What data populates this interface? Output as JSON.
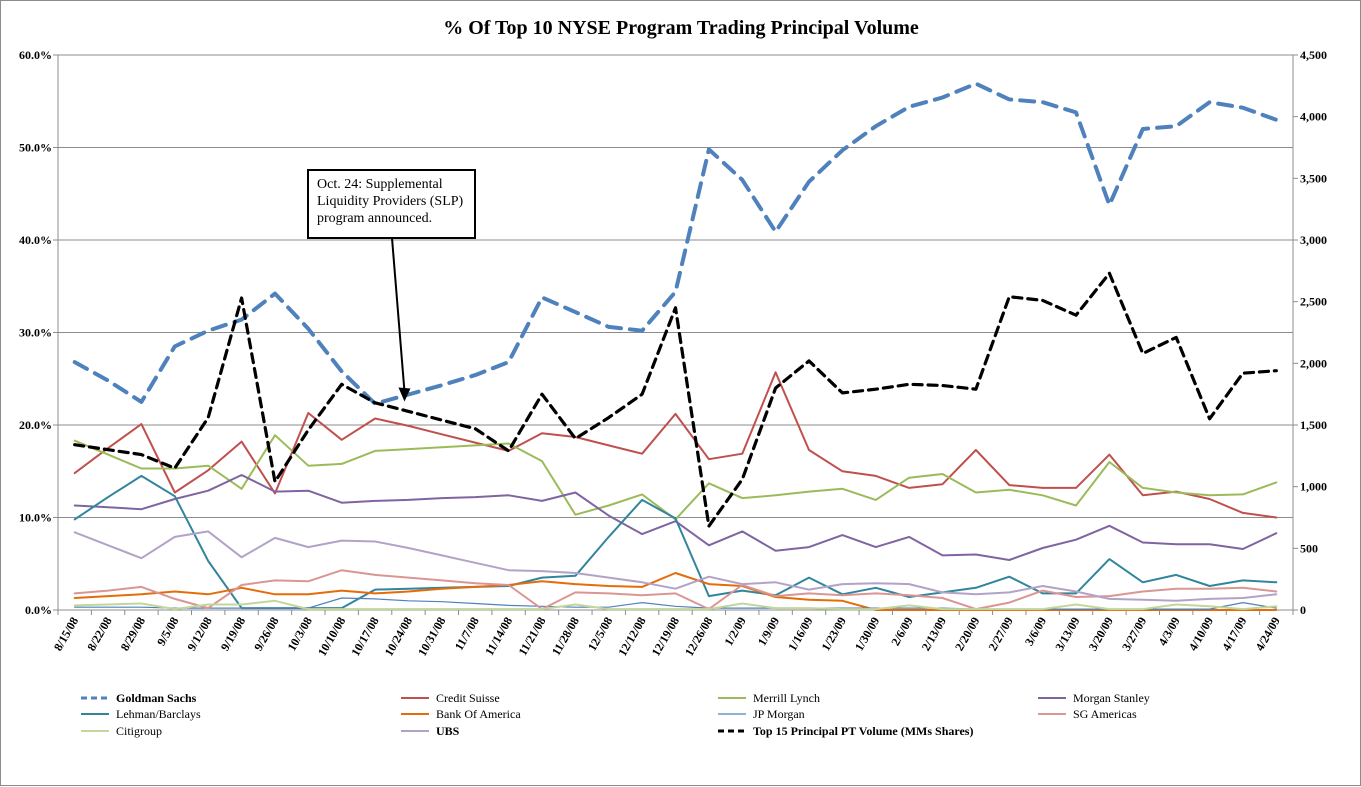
{
  "chart_data": {
    "type": "line",
    "title": "% Of Top 10 NYSE Program Trading Principal Volume",
    "categories": [
      "8/15/08",
      "8/22/08",
      "8/29/08",
      "9/5/08",
      "9/12/08",
      "9/19/08",
      "9/26/08",
      "10/3/08",
      "10/10/08",
      "10/17/08",
      "10/24/08",
      "10/31/08",
      "11/7/08",
      "11/14/08",
      "11/21/08",
      "11/28/08",
      "12/5/08",
      "12/12/08",
      "12/19/08",
      "12/26/08",
      "1/2/09",
      "1/9/09",
      "1/16/09",
      "1/23/09",
      "1/30/09",
      "2/6/09",
      "2/13/09",
      "2/20/09",
      "2/27/09",
      "3/6/09",
      "3/13/09",
      "3/20/09",
      "3/27/09",
      "4/3/09",
      "4/10/09",
      "4/17/09",
      "4/24/09"
    ],
    "tick_labels": [
      "8/15/08",
      "8/22/08",
      "8/29/08",
      "9/5/08",
      "9/12/08",
      "9/19/08",
      "9/26/08",
      "10/3/08",
      "10/10/08",
      "10/17/08",
      "10/24/08",
      "10/31/08",
      "11/7/08",
      "11/14/08",
      "11/21/08",
      "11/28/08",
      "12/5/08",
      "12/12/08",
      "12/19/08",
      "12/26/08",
      "1/2/09",
      "1/9/09",
      "1/16/09",
      "1/23/09",
      "1/30/09",
      "2/6/09",
      "2/13/09",
      "2/20/09",
      "2/27/09",
      "3/6/09",
      "3/13/09",
      "3/20/09",
      "3/27/09",
      "4/3/09",
      "4/10/09",
      "4/17/09",
      "4/24/09"
    ],
    "y_left": {
      "min": 0,
      "max": 60,
      "step": 10,
      "labels": [
        "0.0%",
        "10.0%",
        "20.0%",
        "30.0%",
        "40.0%",
        "50.0%",
        "60.0%"
      ]
    },
    "y_right": {
      "min": 0,
      "max": 4500,
      "step": 500,
      "labels": [
        "0",
        "500",
        "1,000",
        "1,500",
        "2,000",
        "2,500",
        "3,000",
        "3,500",
        "4,000",
        "4,500"
      ]
    },
    "grid": true,
    "legend_position": "bottom",
    "series": [
      {
        "name": "Goldman Sachs",
        "color": "#4F81BD",
        "dash": true,
        "bold": true,
        "width": 4,
        "axis": "left",
        "values": [
          26.8,
          24.8,
          22.5,
          28.5,
          30.2,
          31.4,
          34.2,
          30.4,
          25.8,
          22.3,
          23.3,
          24.3,
          25.4,
          26.8,
          33.8,
          32.2,
          30.6,
          30.2,
          34.4,
          49.8,
          46.5,
          40.9,
          46.3,
          49.7,
          52.3,
          54.4,
          55.4,
          56.9,
          55.2,
          54.9,
          53.8,
          43.8,
          52.0,
          52.3,
          54.9,
          54.3,
          53.0
        ]
      },
      {
        "name": "Credit Suisse",
        "color": "#C0504D",
        "dash": false,
        "bold": false,
        "width": 2,
        "axis": "left",
        "values": [
          14.8,
          17.5,
          20.1,
          12.7,
          15.1,
          18.2,
          12.6,
          21.3,
          18.4,
          20.7,
          19.9,
          19.0,
          18.1,
          17.2,
          19.1,
          18.7,
          17.8,
          16.9,
          21.2,
          16.3,
          16.9,
          25.7,
          17.3,
          15.0,
          14.5,
          13.2,
          13.6,
          17.3,
          13.5,
          13.2,
          13.2,
          16.8,
          12.4,
          12.8,
          12.0,
          10.5,
          10.0
        ]
      },
      {
        "name": "Merrill Lynch",
        "color": "#9BBB59",
        "dash": false,
        "bold": false,
        "width": 2,
        "axis": "left",
        "values": [
          18.3,
          16.8,
          15.3,
          15.3,
          15.6,
          13.1,
          18.9,
          15.6,
          15.8,
          17.2,
          17.4,
          17.6,
          17.8,
          18.0,
          16.1,
          10.3,
          11.3,
          12.5,
          9.8,
          13.7,
          12.1,
          12.4,
          12.8,
          13.1,
          11.9,
          14.3,
          14.7,
          12.7,
          13.0,
          12.4,
          11.3,
          16.0,
          13.2,
          12.7,
          12.4,
          12.5,
          13.8
        ]
      },
      {
        "name": "Morgan Stanley",
        "color": "#8064A2",
        "dash": false,
        "bold": false,
        "width": 2,
        "axis": "left",
        "values": [
          11.3,
          11.1,
          10.9,
          12.0,
          12.9,
          14.6,
          12.8,
          12.9,
          11.6,
          11.8,
          11.9,
          12.1,
          12.2,
          12.4,
          11.8,
          12.7,
          10.2,
          8.2,
          9.6,
          7.0,
          8.5,
          6.4,
          6.8,
          8.1,
          6.8,
          7.9,
          5.9,
          6.0,
          5.4,
          6.7,
          7.6,
          9.1,
          7.3,
          7.1,
          7.1,
          6.6,
          8.3
        ]
      },
      {
        "name": "Lehman/Barclays",
        "color": "#31859C",
        "dash": false,
        "bold": false,
        "width": 2,
        "axis": "left",
        "values": [
          9.8,
          12.2,
          14.5,
          12.3,
          5.3,
          0.2,
          0.2,
          0.2,
          0.2,
          2.2,
          2.3,
          2.4,
          2.5,
          2.6,
          3.5,
          3.7,
          7.9,
          11.9,
          9.9,
          1.5,
          2.1,
          1.6,
          3.5,
          1.7,
          2.4,
          1.4,
          1.9,
          2.4,
          3.6,
          1.8,
          1.8,
          5.5,
          3.0,
          3.8,
          2.6,
          3.2,
          3.0
        ]
      },
      {
        "name": "Bank Of America",
        "color": "#E46C0A",
        "dash": false,
        "bold": false,
        "width": 2,
        "axis": "left",
        "values": [
          1.3,
          1.5,
          1.7,
          2.0,
          1.7,
          2.4,
          1.7,
          1.7,
          2.1,
          1.8,
          2.0,
          2.3,
          2.5,
          2.7,
          3.1,
          2.8,
          2.6,
          2.5,
          4.0,
          2.8,
          2.6,
          1.4,
          1.1,
          1.0,
          0.0,
          0.0,
          0.0,
          0.0,
          0.0,
          0.0,
          0.0,
          0.0,
          0.0,
          0.0,
          0.0,
          0.0,
          0.0
        ]
      },
      {
        "name": "JP Morgan",
        "color": "#4F81BD",
        "dash": false,
        "bold": false,
        "width": 1.2,
        "axis": "left",
        "values": [
          0.3,
          0.3,
          0.3,
          0.2,
          0.2,
          0.2,
          0.2,
          0.2,
          1.3,
          1.2,
          1.0,
          0.9,
          0.7,
          0.5,
          0.4,
          0.3,
          0.3,
          0.8,
          0.4,
          0.2,
          0.2,
          0.2,
          0.2,
          0.2,
          0.2,
          0.2,
          0.2,
          0.1,
          0.1,
          0.1,
          0.1,
          0.1,
          0.1,
          0.1,
          0.1,
          0.8,
          0.2
        ]
      },
      {
        "name": "SG Americas",
        "color": "#D99694",
        "dash": false,
        "bold": false,
        "width": 2,
        "axis": "left",
        "values": [
          1.8,
          2.1,
          2.5,
          1.2,
          0.2,
          2.7,
          3.2,
          3.1,
          4.3,
          3.8,
          3.5,
          3.2,
          2.9,
          2.7,
          0.1,
          1.9,
          1.8,
          1.6,
          1.8,
          0.1,
          2.7,
          1.5,
          1.8,
          1.6,
          1.8,
          1.6,
          1.3,
          0.1,
          0.8,
          2.1,
          1.4,
          1.5,
          2.0,
          2.3,
          2.3,
          2.4,
          2.0
        ]
      },
      {
        "name": "Citigroup",
        "color": "#C3D69B",
        "dash": false,
        "bold": false,
        "width": 2,
        "axis": "left",
        "values": [
          0.5,
          0.6,
          0.7,
          0.1,
          0.6,
          0.6,
          1.0,
          0.1,
          0.1,
          0.1,
          0.1,
          0.1,
          0.1,
          0.1,
          0.1,
          0.6,
          0.1,
          0.1,
          0.1,
          0.1,
          0.7,
          0.2,
          0.2,
          0.1,
          0.1,
          0.5,
          0.1,
          0.1,
          0.1,
          0.1,
          0.6,
          0.1,
          0.1,
          0.6,
          0.4,
          0.1,
          0.4
        ]
      },
      {
        "name": "UBS",
        "color": "#B3A2C7",
        "dash": false,
        "bold": true,
        "width": 2,
        "axis": "left",
        "values": [
          8.4,
          7.0,
          5.6,
          7.9,
          8.5,
          5.7,
          7.8,
          6.8,
          7.5,
          7.4,
          6.7,
          5.9,
          5.1,
          4.3,
          4.2,
          4.0,
          3.5,
          3.0,
          2.3,
          3.6,
          2.8,
          3.0,
          2.2,
          2.8,
          2.9,
          2.8,
          1.9,
          1.7,
          1.9,
          2.6,
          2.0,
          1.2,
          1.1,
          1.0,
          1.2,
          1.3,
          1.7
        ]
      },
      {
        "name": "Top 15 Principal PT Volume (MMs Shares)",
        "color": "#000000",
        "dash": true,
        "bold": true,
        "width": 3.2,
        "axis": "right",
        "values": [
          1340,
          1300,
          1260,
          1150,
          1560,
          2530,
          1040,
          1460,
          1830,
          1680,
          1610,
          1540,
          1470,
          1290,
          1750,
          1390,
          1560,
          1750,
          2450,
          680,
          1060,
          1800,
          2020,
          1760,
          1790,
          1830,
          1820,
          1790,
          2540,
          2510,
          2390,
          2730,
          2080,
          2210,
          1550,
          1920,
          1940
        ]
      }
    ],
    "annotation": {
      "lines": [
        "Oct. 24: Supplemental",
        "Liquidity Providers (SLP)",
        "program announced."
      ],
      "points_to": "10/24/08"
    }
  }
}
